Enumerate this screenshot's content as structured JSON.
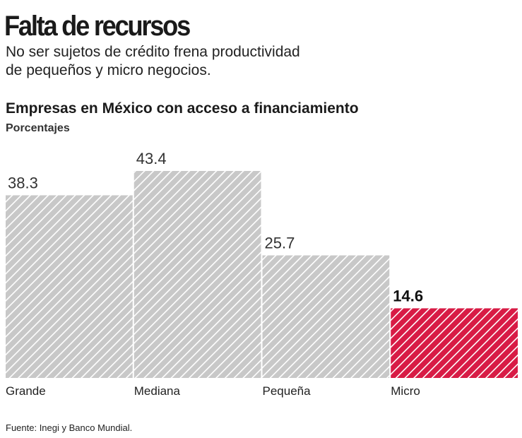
{
  "chart_data": {
    "type": "bar",
    "title": "Falta de recursos",
    "subtitle": [
      "No ser sujetos de crédito frena productividad",
      "de pequeños y micro negocios."
    ],
    "chart_title": "Empresas en México con acceso a financiamiento",
    "unit": "Porcentajes",
    "categories": [
      "Grande",
      "Mediana",
      "Pequeña",
      "Micro"
    ],
    "values": [
      38.3,
      43.4,
      25.7,
      14.6
    ],
    "colors": [
      "#c8c8c8",
      "#c8c8c8",
      "#c8c8c8",
      "#d81b45"
    ],
    "source": "Fuente: Inegi y Banco Mundial."
  }
}
